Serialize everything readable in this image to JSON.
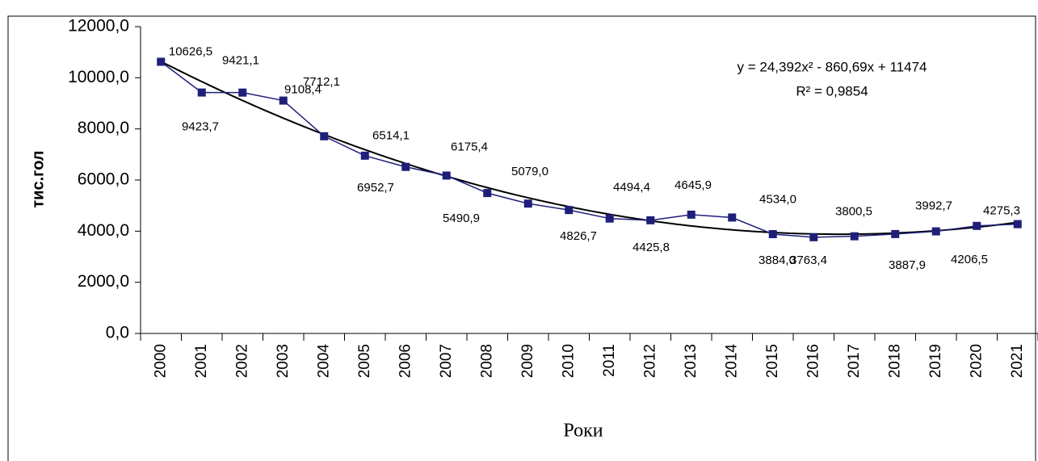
{
  "chart_data": {
    "type": "line",
    "y_label": "тис.гол",
    "x_label": "Роки",
    "categories": [
      "2000",
      "2001",
      "2002",
      "2003",
      "2004",
      "2005",
      "2006",
      "2007",
      "2008",
      "2009",
      "2010",
      "2011",
      "2012",
      "2013",
      "2014",
      "2015",
      "2016",
      "2017",
      "2018",
      "2019",
      "2020",
      "2021"
    ],
    "series": [
      {
        "color": "#1f1f7a",
        "values": [
          10626.5,
          9423.7,
          9421.1,
          9108.4,
          7712.1,
          6952.7,
          6514.1,
          6175.4,
          5490.9,
          5079.0,
          4826.7,
          4494.4,
          4425.8,
          4645.9,
          4534.0,
          3884.0,
          3763.4,
          3800.5,
          3887.9,
          3992.7,
          4206.5,
          4275.3
        ],
        "value_labels": [
          "10626,5",
          "9423,7",
          "9421,1",
          "9108,4",
          "7712,1",
          "6952,7",
          "6514,1",
          "6175,4",
          "5490,9",
          "5079,0",
          "4826,7",
          "4494,4",
          "4425,8",
          "4645,9",
          "4534,0",
          "3884,0",
          "3763,4",
          "3800,5",
          "3887,9",
          "3992,7",
          "4206,5",
          "4275,3"
        ]
      }
    ],
    "trendline": {
      "color": "#000000",
      "coefficients": [
        24.392,
        -860.69,
        11474
      ]
    },
    "annotations": [
      "y = 24,392x² - 860,69x + 11474",
      "R² = 0,9854"
    ],
    "ylim": [
      0,
      12000
    ],
    "yticks": [
      {
        "value": 0,
        "label": "0,0"
      },
      {
        "value": 2000,
        "label": "2000,0"
      },
      {
        "value": 4000,
        "label": "4000,0"
      },
      {
        "value": 6000,
        "label": "6000,0"
      },
      {
        "value": 8000,
        "label": "8000,0"
      },
      {
        "value": 10000,
        "label": "10000,0"
      },
      {
        "value": 12000,
        "label": "12000,0"
      }
    ],
    "grid": false
  }
}
